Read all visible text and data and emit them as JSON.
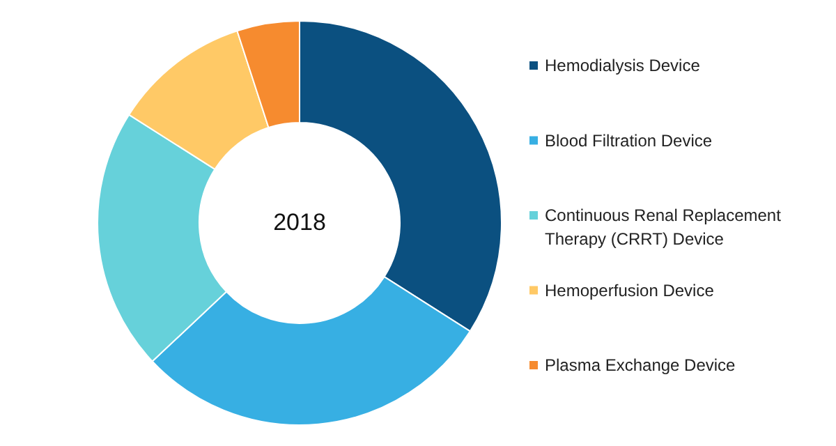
{
  "chart_data": {
    "type": "donut",
    "title": "2018",
    "categories": [
      "Hemodialysis Device",
      "Blood Filtration Device",
      "Continuous Renal Replacement Therapy (CRRT) Device",
      "Hemoperfusion Device",
      "Plasma Exchange Device"
    ],
    "values": [
      34,
      29,
      21,
      11,
      5
    ],
    "colors": [
      "#0b5080",
      "#37afe3",
      "#66d1da",
      "#ffc966",
      "#f68b2f"
    ],
    "legend": "right"
  }
}
